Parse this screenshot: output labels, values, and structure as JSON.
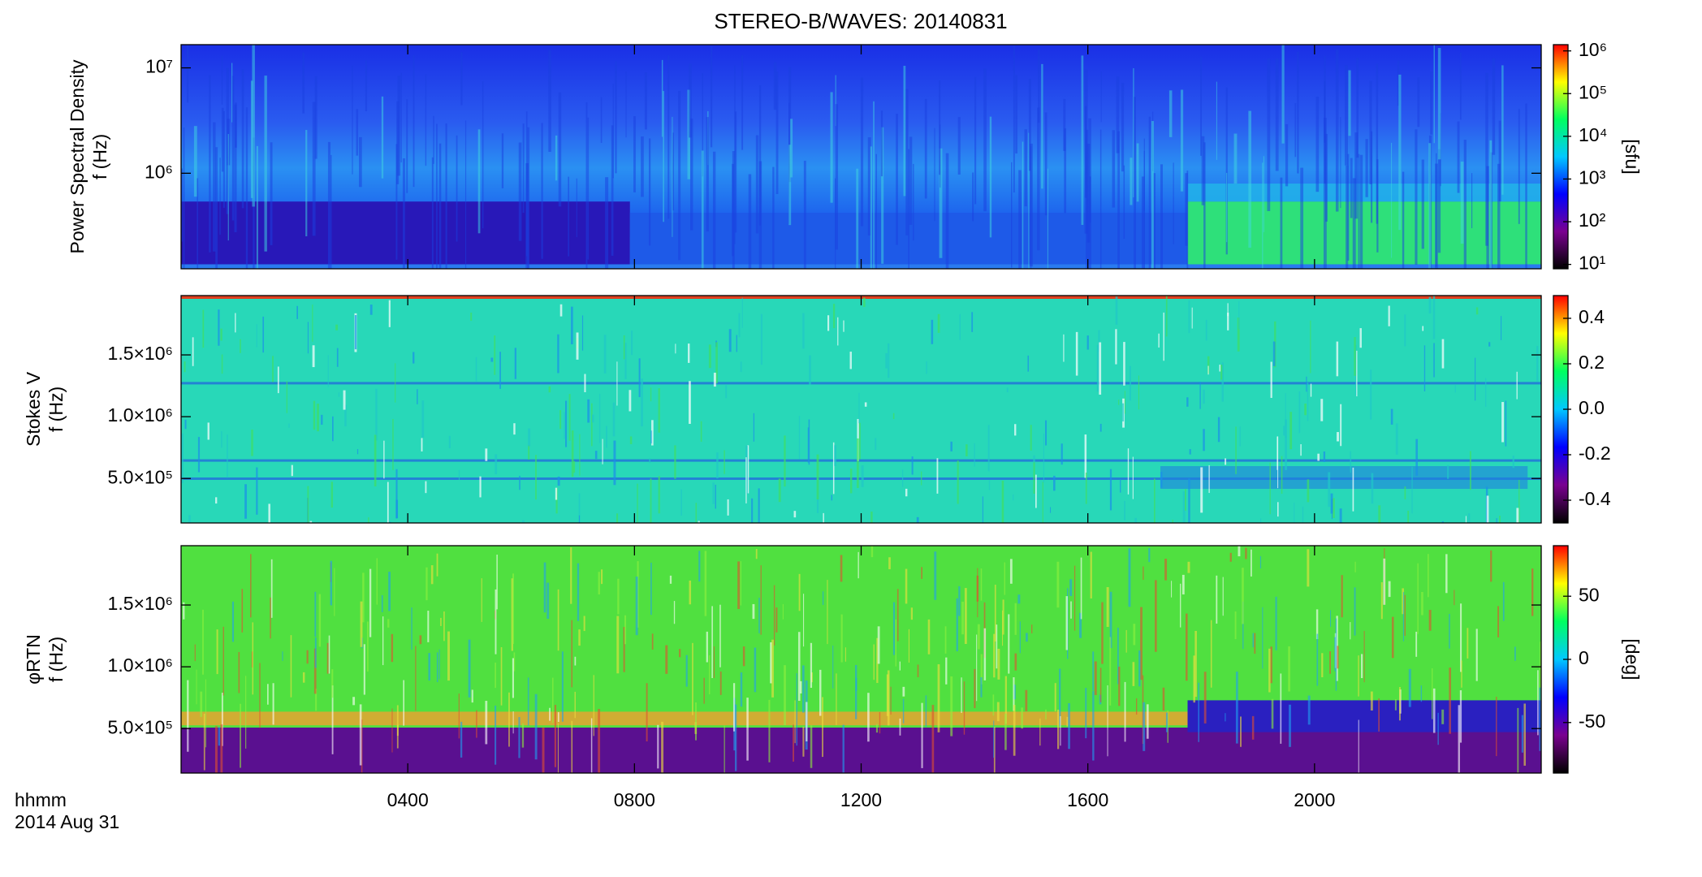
{
  "title": "STEREO-B/WAVES: 20140831",
  "x_axis": {
    "label": "hhmm",
    "date": "2014 Aug 31",
    "xlim": [
      0,
      24
    ],
    "xticks": [
      {
        "value": 4,
        "label": "0400"
      },
      {
        "value": 8,
        "label": "0800"
      },
      {
        "value": 12,
        "label": "1200"
      },
      {
        "value": 16,
        "label": "1600"
      },
      {
        "value": 20,
        "label": "2000"
      }
    ]
  },
  "colormap": [
    "#000000",
    "#7a0090",
    "#0000ff",
    "#00c8ff",
    "#00ff60",
    "#ffff00",
    "#ff0000"
  ],
  "chart_data": [
    {
      "type": "heatmap",
      "ylabel": "Power Spectral Density",
      "yunit": "f (Hz)",
      "ylog": true,
      "ylim": [
        124000,
        16600000
      ],
      "yticks": [
        {
          "value": 1000000,
          "label": "10⁶"
        },
        {
          "value": 10000000,
          "label": "10⁷"
        }
      ],
      "zlog": true,
      "zlim": [
        7.9,
        1400000
      ],
      "zticks": [
        {
          "value": 10,
          "label": "10¹"
        },
        {
          "value": 100,
          "label": "10²"
        },
        {
          "value": 1000,
          "label": "10³"
        },
        {
          "value": 10000,
          "label": "10⁴"
        },
        {
          "value": 100000,
          "label": "10⁵"
        },
        {
          "value": 1000000,
          "label": "10⁶"
        }
      ],
      "zlabel": "[sfu]"
    },
    {
      "type": "heatmap",
      "ylabel": "Stokes V",
      "yunit": "f (Hz)",
      "ylog": false,
      "ylim": [
        140000,
        1980000
      ],
      "yticks": [
        {
          "value": 500000,
          "label": "5.0×10⁵"
        },
        {
          "value": 1000000,
          "label": "1.0×10⁶"
        },
        {
          "value": 1500000,
          "label": "1.5×10⁶"
        }
      ],
      "zlog": false,
      "zlim": [
        -0.5,
        0.5
      ],
      "zticks": [
        -0.4,
        -0.2,
        {
          "value": 0,
          "label": "0.0"
        },
        0.2,
        0.4
      ]
    },
    {
      "type": "heatmap",
      "ylabel": "φRTN",
      "yunit": "f (Hz)",
      "ylog": false,
      "ylim": [
        140000,
        1980000
      ],
      "yticks": [
        {
          "value": 500000,
          "label": "5.0×10⁵"
        },
        {
          "value": 1000000,
          "label": "1.0×10⁶"
        },
        {
          "value": 1500000,
          "label": "1.5×10⁶"
        }
      ],
      "zlog": false,
      "zlim": [
        -90,
        90
      ],
      "zticks": [
        -50,
        0,
        50
      ],
      "zlabel": "[deg]"
    }
  ]
}
